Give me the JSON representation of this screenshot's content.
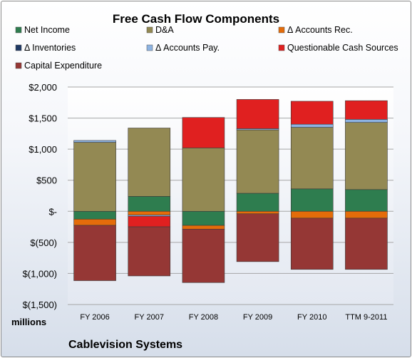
{
  "chart_data": {
    "type": "bar",
    "stacked": true,
    "title": "Free Cash Flow Components",
    "unit_label": "millions",
    "footer_label": "Cablevision Systems",
    "categories": [
      "FY 2006",
      "FY 2007",
      "FY 2008",
      "FY 2009",
      "FY 2010",
      "TTM 9-2011"
    ],
    "ylim": [
      -1500,
      2000
    ],
    "yticks": [
      2000,
      1500,
      1000,
      500,
      0,
      -500,
      -1000,
      -1500
    ],
    "ytick_labels": [
      "$2,000",
      "$1,500",
      "$1,000",
      "$500",
      "$-",
      "$(500)",
      "$(1,000)",
      "$(1,500)"
    ],
    "grid": true,
    "legend_position": "top",
    "series": [
      {
        "name": "Net Income",
        "color": "#2e7d4f",
        "values": [
          -126,
          240,
          -227,
          290,
          361,
          350
        ]
      },
      {
        "name": "D&A",
        "color": "#938953",
        "values": [
          1110,
          1100,
          1020,
          1020,
          990,
          1080
        ]
      },
      {
        "name": "Δ Accounts Rec.",
        "color": "#e46c0a",
        "values": [
          -100,
          -60,
          -60,
          -40,
          -110,
          -110
        ]
      },
      {
        "name": "Δ Inventories",
        "color": "#1f3864",
        "values": [
          0,
          0,
          0,
          0,
          0,
          0
        ]
      },
      {
        "name": "Δ Accounts Pay.",
        "color": "#8db3e2",
        "values": [
          30,
          -20,
          0,
          20,
          50,
          50
        ]
      },
      {
        "name": "Questionable Cash Sources",
        "color": "#e02020",
        "values": [
          0,
          -170,
          490,
          470,
          370,
          300
        ]
      },
      {
        "name": "Capital Expenditure",
        "color": "#953735",
        "values": [
          -890,
          -790,
          -860,
          -770,
          -825,
          -825
        ]
      }
    ]
  }
}
